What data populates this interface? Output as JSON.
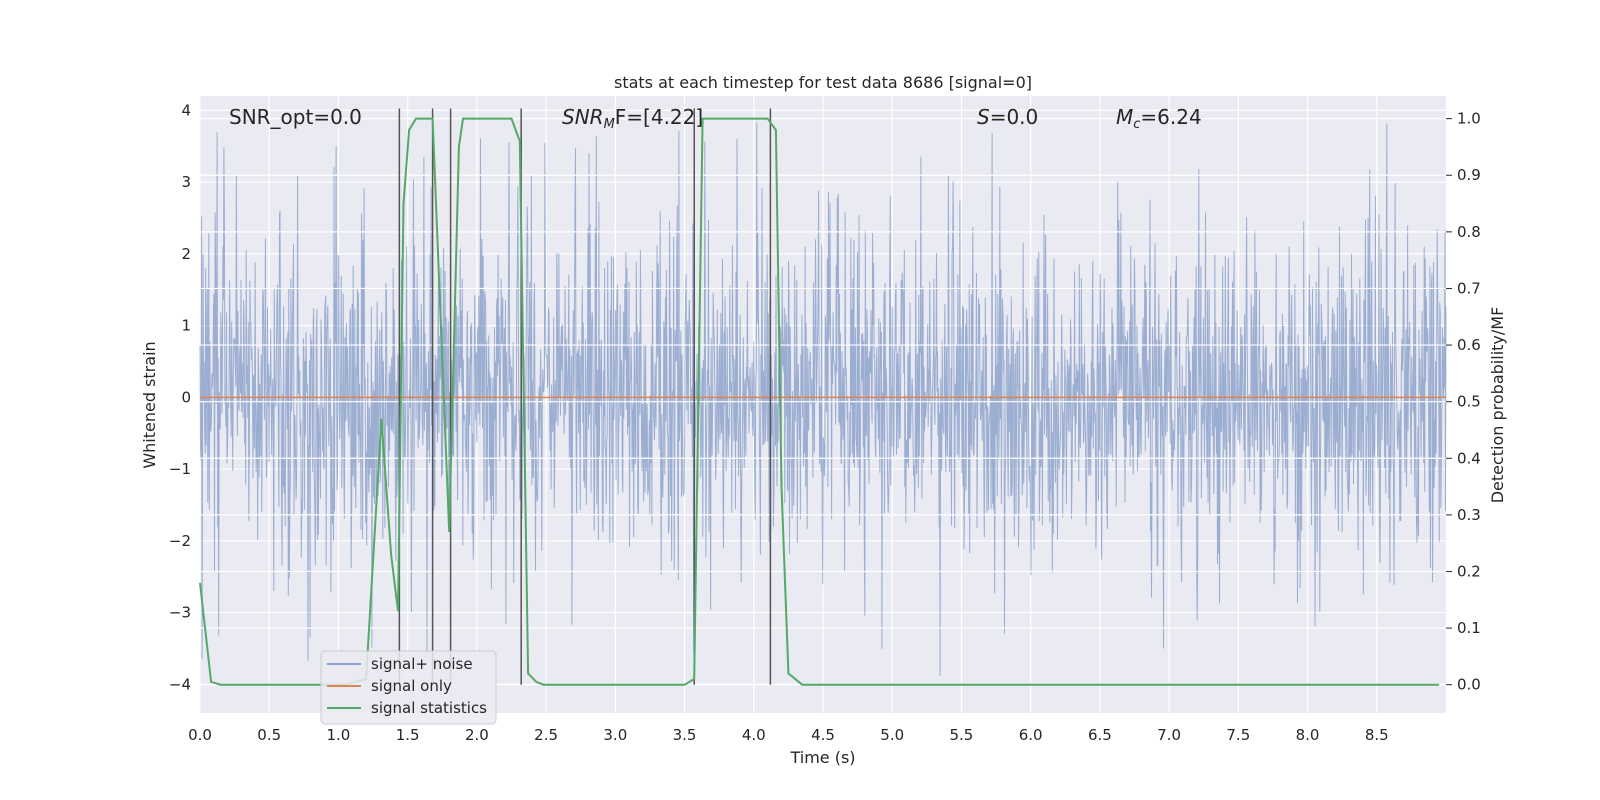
{
  "chart_data": {
    "type": "line",
    "title": "stats at each timestep for test data 8686 [signal=0]",
    "xlabel": "Time (s)",
    "ylabel": "Whitened strain",
    "ylabel_right": "Detection probability/MF",
    "xlim": [
      0.0,
      9.0
    ],
    "ylim": [
      -4.4,
      4.2
    ],
    "ylim_right": [
      -0.05,
      1.04
    ],
    "x_ticks": [
      "0.0",
      "0.5",
      "1.0",
      "1.5",
      "2.0",
      "2.5",
      "3.0",
      "3.5",
      "4.0",
      "4.5",
      "5.0",
      "5.5",
      "6.0",
      "6.5",
      "7.0",
      "7.5",
      "8.0",
      "8.5"
    ],
    "y_ticks": [
      "−4",
      "−3",
      "−2",
      "−1",
      "0",
      "1",
      "2",
      "3",
      "4"
    ],
    "y_ticks_right": [
      "0.0",
      "0.1",
      "0.2",
      "0.3",
      "0.4",
      "0.5",
      "0.6",
      "0.7",
      "0.8",
      "0.9",
      "1.0"
    ],
    "grid": true,
    "legend_position": "lower-left",
    "annotations": [
      "SNR_opt=0.0",
      "SNR",
      "M",
      "F=[4.22]",
      "S",
      "=0.0",
      "M",
      "c",
      "=6.24"
    ],
    "noise": {
      "name": "signal+ noise",
      "color": "#4c72b0",
      "typical_amplitude": 1.7,
      "peak_amplitude": 3.9,
      "duration": 9.0
    },
    "signal": {
      "name": "signal only",
      "color": "#dd8452",
      "value": 0.0
    },
    "statistics": {
      "name": "signal statistics",
      "color": "#55a868",
      "axis": "right",
      "x": [
        0.0,
        0.08,
        0.15,
        1.05,
        1.2,
        1.31,
        1.38,
        1.43,
        1.47,
        1.51,
        1.56,
        1.68,
        1.8,
        1.87,
        1.9,
        2.25,
        2.31,
        2.37,
        2.43,
        2.48,
        2.55,
        3.5,
        3.57,
        3.63,
        4.1,
        4.16,
        4.2,
        4.25,
        4.35,
        8.95
      ],
      "values": [
        0.18,
        0.005,
        0.0,
        0.0,
        0.01,
        0.47,
        0.23,
        0.13,
        0.85,
        0.98,
        1.0,
        1.0,
        0.27,
        0.95,
        1.0,
        1.0,
        0.96,
        0.02,
        0.005,
        0.0,
        0.0,
        0.0,
        0.01,
        1.0,
        1.0,
        0.98,
        0.35,
        0.02,
        0.0,
        0.0
      ]
    },
    "vertical_lines": {
      "color": "#555555",
      "x": [
        1.44,
        1.68,
        1.81,
        2.32,
        3.57,
        4.12
      ]
    }
  }
}
